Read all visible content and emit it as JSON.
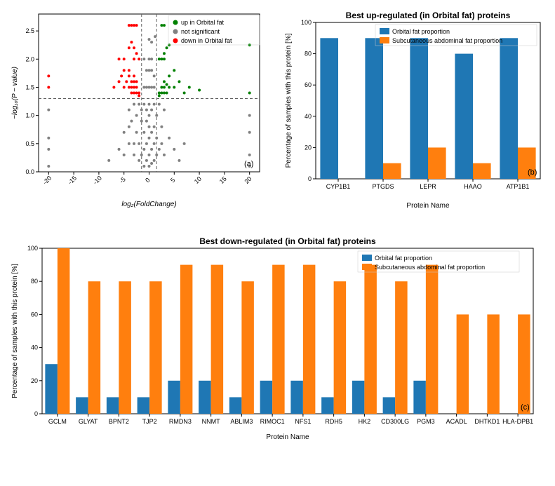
{
  "volcano": {
    "type": "scatter",
    "title": "",
    "xlabel": "log₂(FoldChange)",
    "ylabel": "−log₁₀(P − value)",
    "xlim": [
      -22,
      22
    ],
    "ylim": [
      0,
      2.8
    ],
    "xticks": [
      -20,
      -15,
      -10,
      -5,
      0,
      5,
      10,
      15,
      20
    ],
    "yticks": [
      0.0,
      0.5,
      1.0,
      1.5,
      2.0,
      2.5
    ],
    "panel_label": "(a)",
    "hline_y": 1.3,
    "vline_x": [
      -1.5,
      1.5
    ],
    "colors": {
      "up": "#008000",
      "ns": "#808080",
      "down": "#ff0000",
      "grid": "#d0d0d0",
      "axis": "#000000",
      "hv_line": "#606060"
    },
    "legend": [
      {
        "label": "up in Orbital fat",
        "color": "#008000"
      },
      {
        "label": "not significant",
        "color": "#808080"
      },
      {
        "label": "down in Orbital fat",
        "color": "#ff0000"
      }
    ],
    "label_fontsize": 10,
    "tick_fontsize": 9,
    "marker_size": 4,
    "points_ns": [
      [
        -20,
        0.4
      ],
      [
        -20,
        0.6
      ],
      [
        -20,
        0.1
      ],
      [
        -20,
        1.1
      ],
      [
        -8,
        0.2
      ],
      [
        -6,
        0.4
      ],
      [
        -5,
        0.7
      ],
      [
        -5,
        0.3
      ],
      [
        -4,
        1.1
      ],
      [
        -4,
        0.5
      ],
      [
        -4,
        0.8
      ],
      [
        -3.5,
        0.9
      ],
      [
        -3,
        0.5
      ],
      [
        -3,
        0.3
      ],
      [
        -3,
        1.2
      ],
      [
        -2.5,
        0.7
      ],
      [
        -2.5,
        1.0
      ],
      [
        -2,
        0.2
      ],
      [
        -2,
        0.5
      ],
      [
        -2,
        1.2
      ],
      [
        -1.5,
        0.3
      ],
      [
        -1.5,
        0.9
      ],
      [
        -1.5,
        1.1
      ],
      [
        -1,
        0.1
      ],
      [
        -1,
        0.4
      ],
      [
        -1,
        0.7
      ],
      [
        -1,
        1.2
      ],
      [
        -0.5,
        0.2
      ],
      [
        -0.5,
        0.5
      ],
      [
        -0.5,
        0.9
      ],
      [
        -0.5,
        1.1
      ],
      [
        0,
        0.1
      ],
      [
        0,
        0.3
      ],
      [
        0,
        0.6
      ],
      [
        0,
        0.8
      ],
      [
        0,
        1.0
      ],
      [
        0,
        1.2
      ],
      [
        0.5,
        0.15
      ],
      [
        0.5,
        0.4
      ],
      [
        0.5,
        0.7
      ],
      [
        0.5,
        1.1
      ],
      [
        1,
        0.2
      ],
      [
        1,
        0.5
      ],
      [
        1,
        0.8
      ],
      [
        1,
        1.2
      ],
      [
        1.5,
        0.3
      ],
      [
        1.5,
        0.6
      ],
      [
        1.5,
        1.0
      ],
      [
        2,
        0.4
      ],
      [
        2,
        1.2
      ],
      [
        2.5,
        0.5
      ],
      [
        2.5,
        0.8
      ],
      [
        3,
        0.3
      ],
      [
        3,
        1.1
      ],
      [
        4,
        0.6
      ],
      [
        5,
        0.4
      ],
      [
        6,
        0.2
      ],
      [
        7,
        0.5
      ],
      [
        20,
        0.3
      ],
      [
        20,
        0.7
      ],
      [
        20,
        1.0
      ],
      [
        20,
        0.1
      ],
      [
        -1,
        1.5
      ],
      [
        -0.5,
        1.5
      ],
      [
        0,
        1.5
      ],
      [
        0.5,
        1.5
      ],
      [
        1,
        1.5
      ],
      [
        -0.5,
        1.8
      ],
      [
        0,
        1.8
      ],
      [
        0.5,
        1.8
      ],
      [
        1,
        1.7
      ],
      [
        -1,
        2.0
      ],
      [
        0,
        2.0
      ],
      [
        0.5,
        2.0
      ],
      [
        0.5,
        2.3
      ],
      [
        0,
        2.35
      ],
      [
        1.2,
        2.4
      ]
    ],
    "points_up": [
      [
        2,
        1.35
      ],
      [
        2,
        1.4
      ],
      [
        2.5,
        1.4
      ],
      [
        2.5,
        1.5
      ],
      [
        3,
        1.4
      ],
      [
        3,
        1.5
      ],
      [
        3,
        1.6
      ],
      [
        3.5,
        1.4
      ],
      [
        3.5,
        1.55
      ],
      [
        4,
        1.5
      ],
      [
        4,
        1.7
      ],
      [
        5,
        1.5
      ],
      [
        5,
        1.8
      ],
      [
        6,
        1.6
      ],
      [
        7,
        1.4
      ],
      [
        8,
        1.5
      ],
      [
        10,
        1.45
      ],
      [
        2,
        2.0
      ],
      [
        2.5,
        2.0
      ],
      [
        3,
        2.0
      ],
      [
        3,
        2.1
      ],
      [
        3.5,
        2.2
      ],
      [
        4,
        2.25
      ],
      [
        2.5,
        2.6
      ],
      [
        3,
        2.6
      ],
      [
        20,
        2.25
      ],
      [
        20,
        1.4
      ]
    ],
    "points_down": [
      [
        -2,
        1.35
      ],
      [
        -2,
        1.4
      ],
      [
        -2.5,
        1.4
      ],
      [
        -2.5,
        1.5
      ],
      [
        -2.5,
        1.6
      ],
      [
        -3,
        1.4
      ],
      [
        -3,
        1.5
      ],
      [
        -3,
        1.6
      ],
      [
        -3,
        1.7
      ],
      [
        -3.5,
        1.4
      ],
      [
        -3.5,
        1.5
      ],
      [
        -3.5,
        1.6
      ],
      [
        -4,
        1.5
      ],
      [
        -4,
        1.7
      ],
      [
        -4,
        1.8
      ],
      [
        -4.5,
        1.6
      ],
      [
        -5,
        1.5
      ],
      [
        -5,
        1.8
      ],
      [
        -5,
        2.0
      ],
      [
        -5.5,
        1.7
      ],
      [
        -6,
        1.6
      ],
      [
        -6,
        2.0
      ],
      [
        -2,
        2.0
      ],
      [
        -2.5,
        2.1
      ],
      [
        -3,
        2.0
      ],
      [
        -3,
        2.2
      ],
      [
        -3.5,
        2.3
      ],
      [
        -4,
        2.2
      ],
      [
        -2.5,
        2.6
      ],
      [
        -3,
        2.6
      ],
      [
        -3.5,
        2.6
      ],
      [
        -4,
        2.6
      ],
      [
        -20,
        1.7
      ],
      [
        -20,
        1.5
      ],
      [
        -7,
        1.5
      ]
    ]
  },
  "up_chart": {
    "type": "bar",
    "title": "Best up-regulated (in Orbital fat) proteins",
    "xlabel": "Protein Name",
    "ylabel": "Percentage of samples with this protein [%]",
    "panel_label": "(b)",
    "ylim": [
      0,
      100
    ],
    "yticks": [
      0,
      20,
      40,
      60,
      80,
      100
    ],
    "categories": [
      "CYP1B1",
      "PTGDS",
      "LEPR",
      "HAAO",
      "ATP1B1"
    ],
    "series": [
      {
        "name": "Orbital fat proportion",
        "color": "#1f77b4",
        "values": [
          90,
          90,
          90,
          80,
          90
        ]
      },
      {
        "name": "Subcutaneous abdominal fat proportion",
        "color": "#ff7f0e",
        "values": [
          0,
          10,
          20,
          10,
          20
        ]
      }
    ],
    "bar_width": 0.4,
    "background_color": "#ffffff"
  },
  "down_chart": {
    "type": "bar",
    "title": "Best down-regulated (in Orbital fat) proteins",
    "xlabel": "Protein Name",
    "ylabel": "Percentage of samples with this protein [%]",
    "panel_label": "(c)",
    "ylim": [
      0,
      100
    ],
    "yticks": [
      0,
      20,
      40,
      60,
      80,
      100
    ],
    "categories": [
      "GCLM",
      "GLYAT",
      "BPNT2",
      "TJP2",
      "RMDN3",
      "NNMT",
      "ABLIM3",
      "RIMOC1",
      "NFS1",
      "RDH5",
      "HK2",
      "CD300LG",
      "PGM3",
      "ACADL",
      "DHTKD1",
      "HLA-DPB1"
    ],
    "series": [
      {
        "name": "Orbital fat proportion",
        "color": "#1f77b4",
        "values": [
          30,
          10,
          10,
          10,
          20,
          20,
          10,
          20,
          20,
          10,
          20,
          10,
          20,
          0,
          0,
          0
        ]
      },
      {
        "name": "Subcutaneous abdominal fat proportion",
        "color": "#ff7f0e",
        "values": [
          100,
          80,
          80,
          80,
          90,
          90,
          80,
          90,
          90,
          80,
          90,
          80,
          90,
          60,
          60,
          60
        ]
      }
    ],
    "bar_width": 0.4,
    "background_color": "#ffffff"
  }
}
